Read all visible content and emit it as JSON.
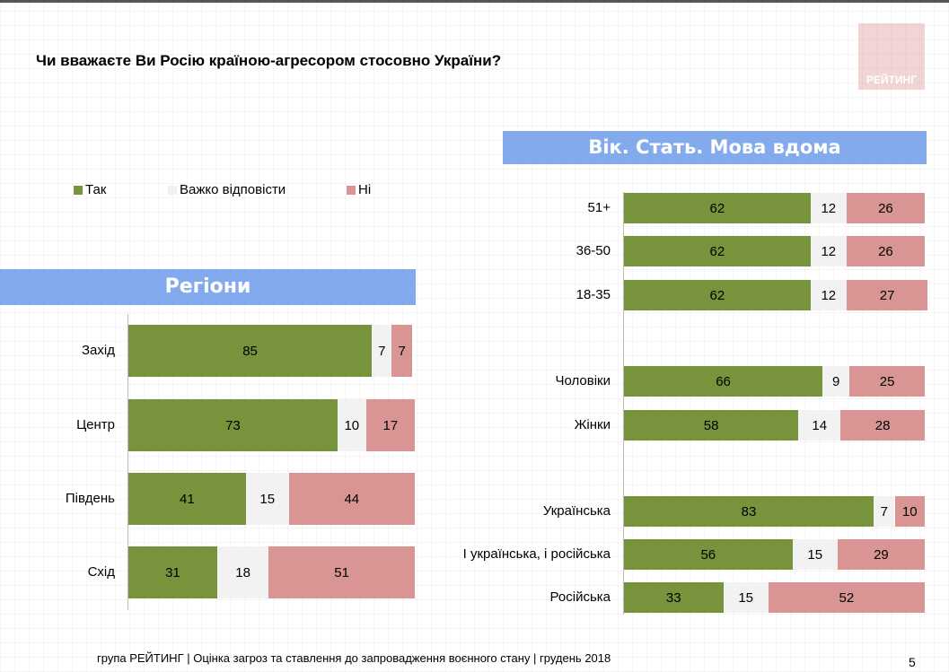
{
  "title": "Чи вважаєте Ви Росію країною-агресором стосовно України?",
  "logo_text": "РЕЙТИНГ",
  "colors": {
    "Так": "#77933c",
    "Важко відповісти": "#f2f2f2",
    "Ні": "#d99594",
    "header": "#84aaee"
  },
  "legend": [
    "Так",
    "Важко відповісти",
    "Ні"
  ],
  "footer": "група РЕЙТИНГ | Оцінка загроз та ставлення до запровадження воєнного стану | грудень 2018",
  "page_number": "5",
  "chart_data": [
    {
      "type": "bar",
      "orientation": "horizontal",
      "stacked": "100%",
      "header": "Регіони",
      "categories": [
        "Захід",
        "Центр",
        "Південь",
        "Схід"
      ],
      "series": [
        {
          "name": "Так",
          "values": [
            85,
            73,
            41,
            31
          ]
        },
        {
          "name": "Важко відповісти",
          "values": [
            7,
            10,
            15,
            18
          ]
        },
        {
          "name": "Ні",
          "values": [
            7,
            17,
            44,
            51
          ]
        }
      ]
    },
    {
      "type": "bar",
      "orientation": "horizontal",
      "stacked": "100%",
      "header": "Вік. Стать. Мова вдома",
      "categories": [
        "51+",
        "36-50",
        "18-35",
        "Чоловіки",
        "Жінки",
        "Українська",
        "І українська, і російська",
        "Російська"
      ],
      "series": [
        {
          "name": "Так",
          "values": [
            62,
            62,
            62,
            66,
            58,
            83,
            56,
            33
          ]
        },
        {
          "name": "Важко відповісти",
          "values": [
            12,
            12,
            12,
            9,
            14,
            7,
            15,
            15
          ]
        },
        {
          "name": "Ні",
          "values": [
            26,
            26,
            27,
            25,
            28,
            10,
            29,
            52
          ]
        }
      ]
    }
  ]
}
